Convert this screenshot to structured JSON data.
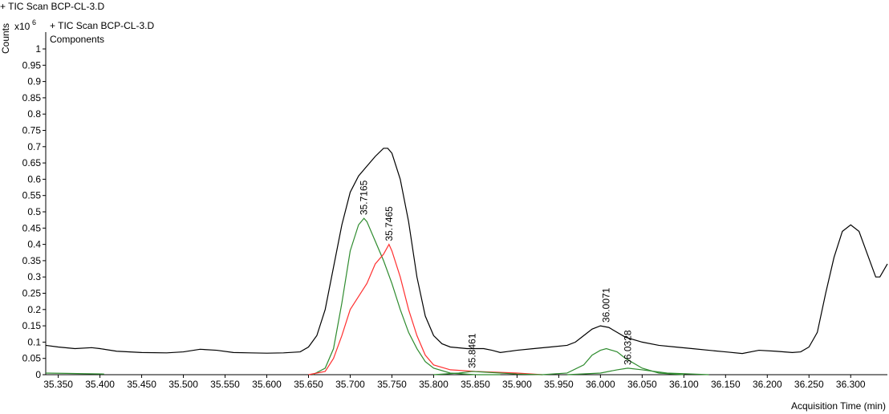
{
  "chart_data": {
    "type": "line",
    "title": "+ TIC Scan BCP-CL-3.D",
    "y_label": "Counts",
    "y_multiplier": "x10",
    "y_exponent": "6",
    "x_label": "Acquisition Time (min)",
    "xlim": [
      35.335,
      36.344
    ],
    "ylim": [
      0,
      1.05
    ],
    "xticks": [
      {
        "value": 35.35,
        "label": "35.350"
      },
      {
        "value": 35.4,
        "label": "35.400"
      },
      {
        "value": 35.45,
        "label": "35.450"
      },
      {
        "value": 35.5,
        "label": "35.500"
      },
      {
        "value": 35.55,
        "label": "35.550"
      },
      {
        "value": 35.6,
        "label": "35.600"
      },
      {
        "value": 35.65,
        "label": "35.650"
      },
      {
        "value": 35.7,
        "label": "35.700"
      },
      {
        "value": 35.75,
        "label": "35.750"
      },
      {
        "value": 35.8,
        "label": "35.800"
      },
      {
        "value": 35.85,
        "label": "35.850"
      },
      {
        "value": 35.9,
        "label": "35.900"
      },
      {
        "value": 35.95,
        "label": "35.950"
      },
      {
        "value": 36.0,
        "label": "36.000"
      },
      {
        "value": 36.05,
        "label": "36.050"
      },
      {
        "value": 36.1,
        "label": "36.100"
      },
      {
        "value": 36.15,
        "label": "36.150"
      },
      {
        "value": 36.2,
        "label": "36.200"
      },
      {
        "value": 36.25,
        "label": "36.250"
      },
      {
        "value": 36.3,
        "label": "36.300"
      }
    ],
    "yticks": [
      0,
      0.05,
      0.1,
      0.15,
      0.2,
      0.25,
      0.3,
      0.35,
      0.4,
      0.45,
      0.5,
      0.55,
      0.6,
      0.65,
      0.7,
      0.75,
      0.8,
      0.85,
      0.9,
      0.95,
      1
    ],
    "series": [
      {
        "name": "+ TIC Scan BCP-CL-3.D",
        "color": "#000000",
        "x": [
          35.335,
          35.35,
          35.37,
          35.39,
          35.4,
          35.42,
          35.45,
          35.48,
          35.5,
          35.52,
          35.54,
          35.56,
          35.58,
          35.6,
          35.62,
          35.64,
          35.65,
          35.66,
          35.67,
          35.68,
          35.69,
          35.7,
          35.71,
          35.72,
          35.73,
          35.74,
          35.745,
          35.75,
          35.76,
          35.77,
          35.78,
          35.79,
          35.8,
          35.81,
          35.82,
          35.84,
          35.86,
          35.87,
          35.88,
          35.9,
          35.92,
          35.94,
          35.96,
          35.97,
          35.98,
          35.99,
          36.0,
          36.01,
          36.02,
          36.03,
          36.05,
          36.07,
          36.09,
          36.11,
          36.13,
          36.15,
          36.17,
          36.19,
          36.21,
          36.23,
          36.24,
          36.25,
          36.26,
          36.27,
          36.28,
          36.29,
          36.3,
          36.31,
          36.32,
          36.33,
          36.335,
          36.344
        ],
        "values": [
          0.09,
          0.085,
          0.08,
          0.083,
          0.08,
          0.072,
          0.068,
          0.067,
          0.07,
          0.078,
          0.075,
          0.068,
          0.067,
          0.066,
          0.067,
          0.07,
          0.085,
          0.12,
          0.2,
          0.33,
          0.46,
          0.56,
          0.61,
          0.64,
          0.67,
          0.695,
          0.695,
          0.68,
          0.6,
          0.47,
          0.3,
          0.18,
          0.12,
          0.095,
          0.085,
          0.08,
          0.08,
          0.075,
          0.068,
          0.075,
          0.08,
          0.085,
          0.09,
          0.1,
          0.12,
          0.14,
          0.15,
          0.145,
          0.13,
          0.115,
          0.1,
          0.09,
          0.085,
          0.08,
          0.075,
          0.07,
          0.065,
          0.075,
          0.072,
          0.068,
          0.07,
          0.085,
          0.13,
          0.25,
          0.36,
          0.44,
          0.46,
          0.44,
          0.37,
          0.3,
          0.3,
          0.34
        ]
      }
    ],
    "components": {
      "name": "Components",
      "color": "#2e8b2e",
      "traces": [
        {
          "color": "#2e8b2e",
          "x": [
            35.335,
            35.36,
            35.38,
            35.405
          ],
          "values": [
            0.005,
            0.004,
            0.003,
            0.002
          ]
        },
        {
          "color": "#2e8b2e",
          "x": [
            35.655,
            35.67,
            35.68,
            35.69,
            35.7,
            35.71,
            35.7165,
            35.72,
            35.73,
            35.74,
            35.75,
            35.76,
            35.77,
            35.78,
            35.79,
            35.8,
            35.82,
            35.85,
            35.88
          ],
          "values": [
            0,
            0.02,
            0.08,
            0.22,
            0.38,
            0.46,
            0.48,
            0.47,
            0.41,
            0.35,
            0.28,
            0.2,
            0.13,
            0.08,
            0.04,
            0.02,
            0.005,
            0,
            0
          ]
        },
        {
          "color": "#ff3030",
          "x": [
            35.65,
            35.67,
            35.68,
            35.69,
            35.7,
            35.71,
            35.72,
            35.73,
            35.74,
            35.7465,
            35.75,
            35.76,
            35.77,
            35.78,
            35.79,
            35.8,
            35.82,
            35.85,
            35.9,
            35.93
          ],
          "values": [
            0,
            0.01,
            0.05,
            0.12,
            0.2,
            0.24,
            0.28,
            0.34,
            0.37,
            0.4,
            0.38,
            0.3,
            0.2,
            0.12,
            0.06,
            0.03,
            0.015,
            0.01,
            0.005,
            0
          ]
        },
        {
          "color": "#2e8b2e",
          "x": [
            35.8,
            35.83,
            35.8461,
            35.86,
            35.9,
            35.93
          ],
          "values": [
            0,
            0.005,
            0.01,
            0.008,
            0.002,
            0
          ]
        },
        {
          "color": "#2e8b2e",
          "x": [
            35.93,
            35.96,
            35.98,
            35.99,
            36.0,
            36.0071,
            36.02,
            36.03,
            36.05,
            36.07,
            36.1
          ],
          "values": [
            0,
            0.005,
            0.03,
            0.06,
            0.075,
            0.08,
            0.07,
            0.05,
            0.02,
            0.005,
            0
          ]
        },
        {
          "color": "#2e8b2e",
          "x": [
            35.96,
            36.0,
            36.02,
            36.0328,
            36.05,
            36.08,
            36.13
          ],
          "values": [
            0,
            0.005,
            0.015,
            0.02,
            0.015,
            0.005,
            0
          ]
        }
      ]
    },
    "peaks": [
      {
        "x": 35.7165,
        "y": 0.49,
        "color": "#2e8b2e"
      },
      {
        "x": 35.7465,
        "y": 0.41,
        "color": "#ff3030"
      },
      {
        "x": 35.8461,
        "y": 0.02,
        "color": "#2e8b2e"
      },
      {
        "x": 36.0071,
        "y": 0.16,
        "color": "#2e8b2e"
      },
      {
        "x": 36.0328,
        "y": 0.03,
        "color": "#2e8b2e"
      }
    ]
  }
}
